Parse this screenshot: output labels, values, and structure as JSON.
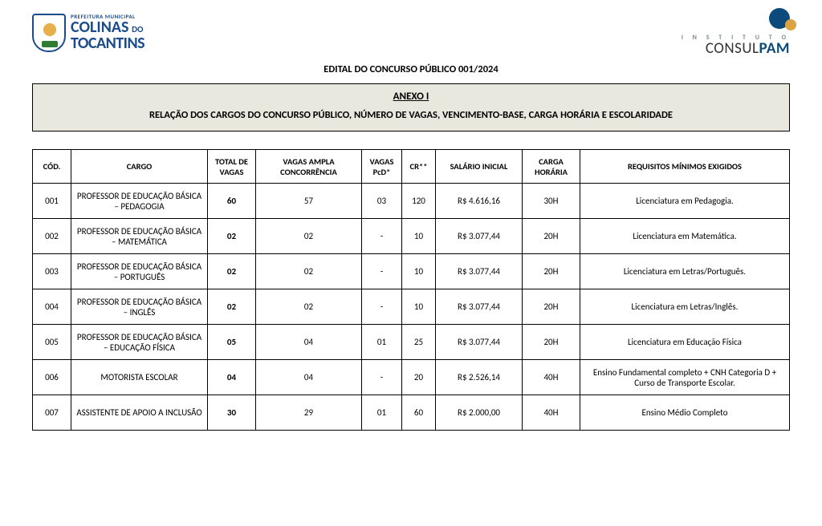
{
  "header": {
    "city_small": "PREFEITURA MUNICIPAL",
    "city_main": "COLINAS",
    "city_do": "DO",
    "city_sub": "TOCANTINS",
    "institute_small": "I N S T I T U T O",
    "institute_main_a": "CONSUL",
    "institute_main_b": "PAM"
  },
  "titles": {
    "edital": "EDITAL DO CONCURSO PÚBLICO 001/2024",
    "anexo": "ANEXO I",
    "anexo_sub": "RELAÇÃO DOS CARGOS DO CONCURSO PÚBLICO, NÚMERO DE VAGAS, VENCIMENTO-BASE, CARGA HORÁRIA E ESCOLARIDADE"
  },
  "columns": {
    "cod": "CÓD.",
    "cargo": "CARGO",
    "total": "TOTAL DE VAGAS",
    "ampla": "VAGAS AMPLA CONCORRÊNCIA",
    "pcd": "VAGAS PcD*",
    "cr": "CR**",
    "sal": "SALÁRIO INICIAL",
    "ch": "CARGA HORÁRIA",
    "req": "REQUISITOS MÍNIMOS EXIGIDOS"
  },
  "rows": [
    {
      "cod": "001",
      "cargo": "PROFESSOR DE EDUCAÇÃO BÁSICA – PEDAGOGIA",
      "total": "60",
      "ampla": "57",
      "pcd": "03",
      "cr": "120",
      "sal": "R$ 4.616,16",
      "ch": "30H",
      "req": "Licenciatura em Pedagogia.",
      "req_align": "center"
    },
    {
      "cod": "002",
      "cargo": "PROFESSOR DE EDUCAÇÃO BÁSICA – MATEMÁTICA",
      "total": "02",
      "ampla": "02",
      "pcd": "-",
      "cr": "10",
      "sal": "R$ 3.077,44",
      "ch": "20H",
      "req": "Licenciatura em Matemática.",
      "req_align": "center"
    },
    {
      "cod": "003",
      "cargo": "PROFESSOR DE EDUCAÇÃO BÁSICA – PORTUGUÊS",
      "total": "02",
      "ampla": "02",
      "pcd": "-",
      "cr": "10",
      "sal": "R$ 3.077,44",
      "ch": "20H",
      "req": "Licenciatura em Letras/Português.",
      "req_align": "center"
    },
    {
      "cod": "004",
      "cargo": "PROFESSOR DE EDUCAÇÃO BÁSICA – INGLÊS",
      "total": "02",
      "ampla": "02",
      "pcd": "-",
      "cr": "10",
      "sal": "R$ 3.077,44",
      "ch": "20H",
      "req": "Licenciatura em Letras/Inglês.",
      "req_align": "center"
    },
    {
      "cod": "005",
      "cargo": "PROFESSOR DE EDUCAÇÃO BÁSICA – EDUCAÇÃO FÍSICA",
      "total": "05",
      "ampla": "04",
      "pcd": "01",
      "cr": "25",
      "sal": "R$ 3.077,44",
      "ch": "20H",
      "req": "Licenciatura em Educação Física",
      "req_align": "center"
    },
    {
      "cod": "006",
      "cargo": "MOTORISTA ESCOLAR",
      "total": "04",
      "ampla": "04",
      "pcd": "-",
      "cr": "20",
      "sal": "R$ 2.526,14",
      "ch": "40H",
      "req": "Ensino Fundamental completo + CNH Categoria D + Curso de Transporte Escolar.",
      "req_align": "justify"
    },
    {
      "cod": "007",
      "cargo": "ASSISTENTE DE APOIO A INCLUSÃO",
      "total": "30",
      "ampla": "29",
      "pcd": "01",
      "cr": "60",
      "sal": "R$ 2.000,00",
      "ch": "40H",
      "req": "Ensino Médio Completo",
      "req_align": "center"
    }
  ]
}
